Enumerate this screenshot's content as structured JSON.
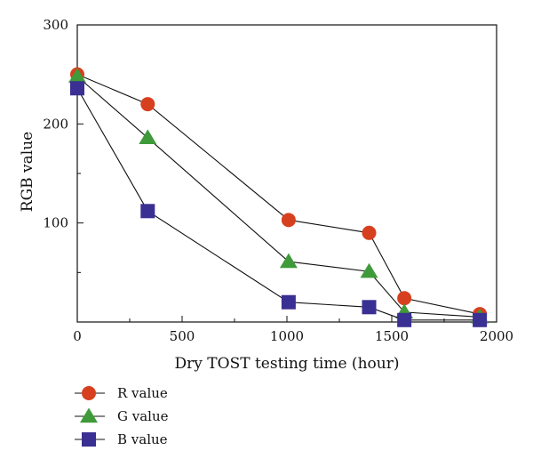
{
  "chart_data": {
    "type": "line",
    "title": "",
    "xlabel": "Dry TOST testing time (hour)",
    "ylabel": "RGB value",
    "xlim": [
      0,
      2000
    ],
    "ylim": [
      0,
      300
    ],
    "xticks": [
      0,
      500,
      1000,
      1500,
      2000
    ],
    "yticks": [
      100,
      200,
      300
    ],
    "grid": false,
    "legend_position": "bottom-left, below plot",
    "series": [
      {
        "name": "R value",
        "marker": "circle",
        "color": "#d7401f",
        "x": [
          0,
          336,
          1008,
          1392,
          1560,
          1920
        ],
        "y": [
          250,
          220,
          103,
          90,
          24,
          8
        ]
      },
      {
        "name": "G value",
        "marker": "triangle",
        "color": "#3f9a3a",
        "x": [
          0,
          336,
          1008,
          1392,
          1560,
          1920
        ],
        "y": [
          248,
          186,
          61,
          51,
          10,
          5
        ]
      },
      {
        "name": "B value",
        "marker": "square",
        "color": "#3a2f92",
        "x": [
          0,
          336,
          1008,
          1392,
          1560,
          1920
        ],
        "y": [
          236,
          112,
          20,
          15,
          2,
          2
        ]
      }
    ]
  }
}
